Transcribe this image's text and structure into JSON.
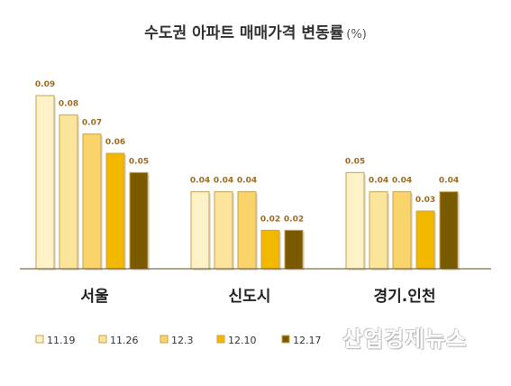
{
  "chart_data": {
    "type": "bar",
    "title": "수도권 아파트 매매가격 변동률",
    "unit": "(%)",
    "categories": [
      "서울",
      "신도시",
      "경기.인천"
    ],
    "series": [
      {
        "name": "11.19",
        "color": "#fdf1c8",
        "values": [
          0.09,
          0.04,
          0.05
        ]
      },
      {
        "name": "11.26",
        "color": "#fbe49c",
        "values": [
          0.08,
          0.04,
          0.04
        ]
      },
      {
        "name": "12.3",
        "color": "#f8d46a",
        "values": [
          0.07,
          0.04,
          0.04
        ]
      },
      {
        "name": "12.10",
        "color": "#f2b800",
        "values": [
          0.06,
          0.02,
          0.03
        ]
      },
      {
        "name": "12.17",
        "color": "#7a5a00",
        "values": [
          0.05,
          0.02,
          0.04
        ]
      }
    ],
    "data_label_color": "#a06a20",
    "axis_line_color": "#6b4a1a",
    "ylim": [
      0,
      0.09
    ],
    "legend_position": "bottom-left",
    "grid": false
  },
  "watermark": "산업경제뉴스"
}
